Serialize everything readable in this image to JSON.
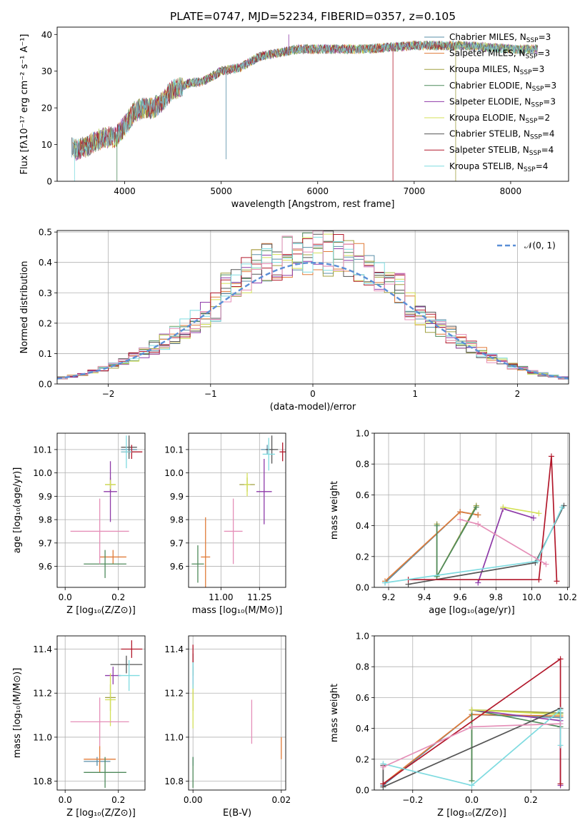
{
  "figure_title": "PLATE=0747, MJD=52234, FIBERID=0357, z=0.105",
  "series": [
    {
      "label": "Chabrier MILES, N",
      "sub": "SSP",
      "suffix": "=3",
      "color": "#5a8fa8"
    },
    {
      "label": "Salpeter MILES, N",
      "sub": "SSP",
      "suffix": "=3",
      "color": "#e07b39"
    },
    {
      "label": "Kroupa MILES, N",
      "sub": "SSP",
      "suffix": "=3",
      "color": "#a0a040"
    },
    {
      "label": "Chabrier ELODIE, N",
      "sub": "SSP",
      "suffix": "=3",
      "color": "#4f8a5b"
    },
    {
      "label": "Salpeter ELODIE, N",
      "sub": "SSP",
      "suffix": "=3",
      "color": "#8e3aa8"
    },
    {
      "label": "Kroupa ELODIE, N",
      "sub": "SSP",
      "suffix": "=2",
      "color": "#d4e157"
    },
    {
      "label": "Chabrier STELIB, N",
      "sub": "SSP",
      "suffix": "=4",
      "color": "#555555"
    },
    {
      "label": "Salpeter STELIB, N",
      "sub": "SSP",
      "suffix": "=4",
      "color": "#b2182b"
    },
    {
      "label": "Kroupa STELIB, N",
      "sub": "SSP",
      "suffix": "=4",
      "color": "#7fdbe0"
    }
  ],
  "colors": {
    "pink": "#e58fb8",
    "gaussian": "#5b8fd6",
    "grid": "#b0b0b0"
  },
  "chart_data": [
    {
      "id": "spectrum",
      "type": "line",
      "xlabel": "wavelength [Angstrom, rest frame]",
      "ylabel": "Flux [fλ10⁻¹⁷ erg cm⁻² s⁻¹ A⁻¹]",
      "xlim": [
        3300,
        8600
      ],
      "ylim": [
        0,
        42
      ],
      "xticks": [
        4000,
        5000,
        6000,
        7000,
        8000
      ],
      "yticks": [
        0,
        10,
        20,
        30,
        40
      ],
      "continuum": {
        "x": [
          3450,
          3500,
          3600,
          3700,
          3800,
          3900,
          4000,
          4100,
          4200,
          4300,
          4400,
          4500,
          4600,
          4700,
          4800,
          5000,
          5200,
          5400,
          5600,
          5800,
          6000,
          6500,
          7000,
          7500,
          8000,
          8300
        ],
        "y": [
          9.5,
          8.5,
          9.5,
          11,
          12,
          12,
          15,
          19,
          20,
          20,
          22,
          25,
          26,
          27,
          27,
          30,
          31,
          34,
          35,
          36,
          36,
          36,
          37,
          37,
          36,
          36
        ]
      },
      "spikes": [
        {
          "x": 5050,
          "y": 6
        },
        {
          "x": 5700,
          "y": 40
        },
        {
          "x": 3480,
          "y": 0
        },
        {
          "x": 3920,
          "y": 0
        },
        {
          "x": 6780,
          "y": 0
        },
        {
          "x": 7430,
          "y": 0
        }
      ],
      "x_start": [
        3450,
        3460,
        3470,
        3470,
        3480,
        3470,
        3450,
        3500,
        3470
      ],
      "x_end": [
        8280,
        8280,
        8280,
        8280,
        8280,
        8280,
        8280,
        7430,
        8280
      ]
    },
    {
      "id": "residuals",
      "type": "histogram",
      "xlabel": "(data-model)/error",
      "ylabel": "Normed distribution",
      "xlim": [
        -2.5,
        2.5
      ],
      "ylim": [
        0,
        0.505
      ],
      "xticks": [
        -2,
        -1,
        0,
        1,
        2
      ],
      "yticks": [
        0.0,
        0.1,
        0.2,
        0.3,
        0.4,
        0.5
      ],
      "legend": "𝒩(0, 1)",
      "bin_width": 0.1,
      "bins_start": -2.5
    },
    {
      "id": "Z-age",
      "type": "errorbar",
      "xlabel": "Z [log₁₀(Z/Z⊙)]",
      "ylabel": "age  [log₁₀(age/yr)]",
      "xlim": [
        -0.03,
        0.3
      ],
      "ylim": [
        9.51,
        10.17
      ],
      "xticks": [
        0.0,
        0.2
      ],
      "yticks": [
        9.6,
        9.7,
        9.8,
        9.9,
        10.0,
        10.1
      ],
      "points": [
        {
          "x": 0.24,
          "y": 10.1,
          "xerr": 0.03,
          "yerr": 0.02
        },
        {
          "x": 0.18,
          "y": 9.64,
          "xerr": 0.05,
          "yerr": 0.03
        },
        {
          "x": 0.17,
          "y": 9.95,
          "xerr": 0.02,
          "yerr": 0.03
        },
        {
          "x": 0.15,
          "y": 9.61,
          "xerr": 0.08,
          "yerr": 0.06
        },
        {
          "x": 0.17,
          "y": 9.92,
          "xerr": 0.025,
          "yerr": 0.13
        },
        {
          "x": 0.17,
          "y": 9.95,
          "xerr": 0.02,
          "yerr": 0.02
        },
        {
          "x": 0.24,
          "y": 10.11,
          "xerr": 0.03,
          "yerr": 0.05
        },
        {
          "x": 0.25,
          "y": 10.09,
          "xerr": 0.04,
          "yerr": 0.03
        },
        {
          "x": 0.23,
          "y": 10.09,
          "xerr": 0.02,
          "yerr": 0.07
        }
      ],
      "extra": {
        "x": 0.13,
        "y": 9.75,
        "xerr": 0.11,
        "yerr": 0.14
      }
    },
    {
      "id": "mass-age",
      "type": "errorbar",
      "xlabel": "mass [log₁₀(M/M⊙)]",
      "ylabel": "",
      "xlim": [
        10.79,
        11.42
      ],
      "ylim": [
        9.51,
        10.17
      ],
      "xticks": [
        11.0,
        11.25
      ],
      "yticks": [
        9.6,
        9.7,
        9.8,
        9.9,
        10.0,
        10.1
      ],
      "points": [
        {
          "x": 11.3,
          "y": 10.1,
          "xerr": 0.04,
          "yerr": 0.02
        },
        {
          "x": 10.9,
          "y": 9.64,
          "xerr": 0.03,
          "yerr": 0.17
        },
        {
          "x": 11.17,
          "y": 9.95,
          "xerr": 0.05,
          "yerr": 0.03
        },
        {
          "x": 10.85,
          "y": 9.61,
          "xerr": 0.04,
          "yerr": 0.08
        },
        {
          "x": 11.28,
          "y": 9.92,
          "xerr": 0.05,
          "yerr": 0.14
        },
        {
          "x": 11.17,
          "y": 9.95,
          "xerr": 0.02,
          "yerr": 0.05
        },
        {
          "x": 11.33,
          "y": 10.1,
          "xerr": 0.04,
          "yerr": 0.06
        },
        {
          "x": 11.4,
          "y": 10.09,
          "xerr": 0.02,
          "yerr": 0.04
        },
        {
          "x": 11.31,
          "y": 10.08,
          "xerr": 0.04,
          "yerr": 0.07
        }
      ],
      "extra": {
        "x": 11.08,
        "y": 9.75,
        "xerr": 0.06,
        "yerr": 0.14
      }
    },
    {
      "id": "age-weight",
      "type": "line",
      "xlabel": "age  [log₁₀(age/yr)]",
      "ylabel": "mass weight",
      "xlim": [
        9.12,
        10.21
      ],
      "ylim": [
        0,
        1.0
      ],
      "xticks": [
        9.2,
        9.4,
        9.6,
        9.8,
        10.0,
        10.2
      ],
      "yticks": [
        0.0,
        0.2,
        0.4,
        0.6,
        0.8,
        1.0
      ],
      "lines": [
        {
          "x": [
            9.18,
            9.6,
            9.7
          ],
          "y": [
            0.03,
            0.49,
            0.47
          ]
        },
        {
          "x": [
            9.18,
            9.6,
            9.7
          ],
          "y": [
            0.04,
            0.49,
            0.47
          ]
        },
        {
          "x": [
            9.47,
            9.47,
            9.69
          ],
          "y": [
            0.41,
            0.07,
            0.53
          ]
        },
        {
          "x": [
            9.47,
            9.47,
            9.69
          ],
          "y": [
            0.4,
            0.07,
            0.52
          ]
        },
        {
          "x": [
            9.7,
            9.84,
            10.01
          ],
          "y": [
            0.03,
            0.51,
            0.45
          ]
        },
        {
          "x": [
            9.84,
            10.04
          ],
          "y": [
            0.52,
            0.48
          ]
        },
        {
          "x": [
            9.31,
            10.02,
            10.18
          ],
          "y": [
            0.02,
            0.16,
            0.53
          ]
        },
        {
          "x": [
            9.31,
            10.04,
            10.11,
            10.14
          ],
          "y": [
            0.05,
            0.05,
            0.85,
            0.04
          ]
        },
        {
          "x": [
            9.18,
            10.03,
            10.17
          ],
          "y": [
            0.03,
            0.17,
            0.52
          ]
        }
      ],
      "extra_line": {
        "x": [
          9.6,
          9.7,
          10.08
        ],
        "y": [
          0.44,
          0.41,
          0.15
        ]
      }
    },
    {
      "id": "Z-mass",
      "type": "errorbar",
      "xlabel": "Z [log₁₀(Z/Z⊙)]",
      "ylabel": "mass [log₁₀(M/M⊙)]",
      "xlim": [
        -0.03,
        0.3
      ],
      "ylim": [
        10.76,
        11.46
      ],
      "xticks": [
        0.0,
        0.2
      ],
      "yticks": [
        10.8,
        11.0,
        11.2,
        11.4
      ],
      "points": [
        {
          "x": 0.12,
          "y": 10.89,
          "xerr": 0.05,
          "yerr": 0.02
        },
        {
          "x": 0.13,
          "y": 10.9,
          "xerr": 0.06,
          "yerr": 0.06
        },
        {
          "x": 0.17,
          "y": 11.18,
          "xerr": 0.02,
          "yerr": 0.06
        },
        {
          "x": 0.15,
          "y": 10.84,
          "xerr": 0.08,
          "yerr": 0.07
        },
        {
          "x": 0.18,
          "y": 11.28,
          "xerr": 0.03,
          "yerr": 0.04
        },
        {
          "x": 0.17,
          "y": 11.17,
          "xerr": 0.02,
          "yerr": 0.12
        },
        {
          "x": 0.23,
          "y": 11.33,
          "xerr": 0.06,
          "yerr": 0.04
        },
        {
          "x": 0.25,
          "y": 11.4,
          "xerr": 0.04,
          "yerr": 0.04
        },
        {
          "x": 0.24,
          "y": 11.28,
          "xerr": 0.04,
          "yerr": 0.07
        }
      ],
      "extra": {
        "x": 0.13,
        "y": 11.07,
        "xerr": 0.11,
        "yerr": 0.11
      }
    },
    {
      "id": "ebv-mass",
      "type": "errorbar",
      "xlabel": "E(B-V)",
      "ylabel": "",
      "xlim": [
        -0.001,
        0.021
      ],
      "ylim": [
        10.76,
        11.46
      ],
      "xticks": [
        0.0,
        0.02
      ],
      "yticks": [
        10.8,
        11.0,
        11.2,
        11.4
      ],
      "points": [
        {
          "x": 0.0,
          "y": 10.89,
          "xerr": 0,
          "yerr": 0.02
        },
        {
          "x": 0.02,
          "y": 10.95,
          "xerr": 0,
          "yerr": 0.05
        },
        {
          "x": 0.0,
          "y": 11.18,
          "xerr": 0,
          "yerr": 0.06
        },
        {
          "x": 0.0,
          "y": 10.84,
          "xerr": 0,
          "yerr": 0.07
        },
        {
          "x": 0.0,
          "y": 11.28,
          "xerr": 0,
          "yerr": 0.04
        },
        {
          "x": 0.0,
          "y": 11.13,
          "xerr": 0,
          "yerr": 0.09
        },
        {
          "x": 0.0,
          "y": 11.33,
          "xerr": 0,
          "yerr": 0.05
        },
        {
          "x": 0.0,
          "y": 11.38,
          "xerr": 0,
          "yerr": 0.04
        },
        {
          "x": 0.0,
          "y": 11.28,
          "xerr": 0,
          "yerr": 0.06
        }
      ],
      "extra": {
        "x": 0.0133,
        "y": 11.07,
        "xerr": 0,
        "yerr": 0.1
      }
    },
    {
      "id": "Z-weight",
      "type": "line",
      "xlabel": "Z [log₁₀(Z/Z⊙)]",
      "ylabel": "mass weight",
      "xlim": [
        -0.33,
        0.33
      ],
      "ylim": [
        0,
        1.0
      ],
      "xticks": [
        -0.2,
        0.0,
        0.2
      ],
      "yticks": [
        0.0,
        0.2,
        0.4,
        0.6,
        0.8,
        1.0
      ],
      "lines": [
        {
          "x": [
            -0.3,
            0.0,
            0.3
          ],
          "y": [
            0.03,
            0.49,
            0.47
          ]
        },
        {
          "x": [
            -0.3,
            0.0,
            0.3
          ],
          "y": [
            0.04,
            0.49,
            0.48
          ]
        },
        {
          "x": [
            0.0,
            0.0,
            0.3
          ],
          "y": [
            0.06,
            0.52,
            0.5
          ]
        },
        {
          "x": [
            0.0,
            0.0,
            0.3,
            0.3
          ],
          "y": [
            0.06,
            0.52,
            0.41,
            0.5
          ]
        },
        {
          "x": [
            0.0,
            0.3,
            0.3
          ],
          "y": [
            0.52,
            0.45,
            0.03
          ]
        },
        {
          "x": [
            0.0,
            0.3
          ],
          "y": [
            0.52,
            0.49
          ]
        },
        {
          "x": [
            -0.3,
            -0.3,
            0.3
          ],
          "y": [
            0.16,
            0.02,
            0.53
          ]
        },
        {
          "x": [
            -0.3,
            0.3,
            0.3
          ],
          "y": [
            0.04,
            0.85,
            0.04
          ]
        },
        {
          "x": [
            -0.3,
            0.0,
            0.3,
            0.3
          ],
          "y": [
            0.17,
            0.03,
            0.52,
            0.29
          ]
        }
      ],
      "extra_line": {
        "x": [
          -0.3,
          0.0,
          0.3
        ],
        "y": [
          0.15,
          0.41,
          0.43
        ]
      }
    }
  ]
}
